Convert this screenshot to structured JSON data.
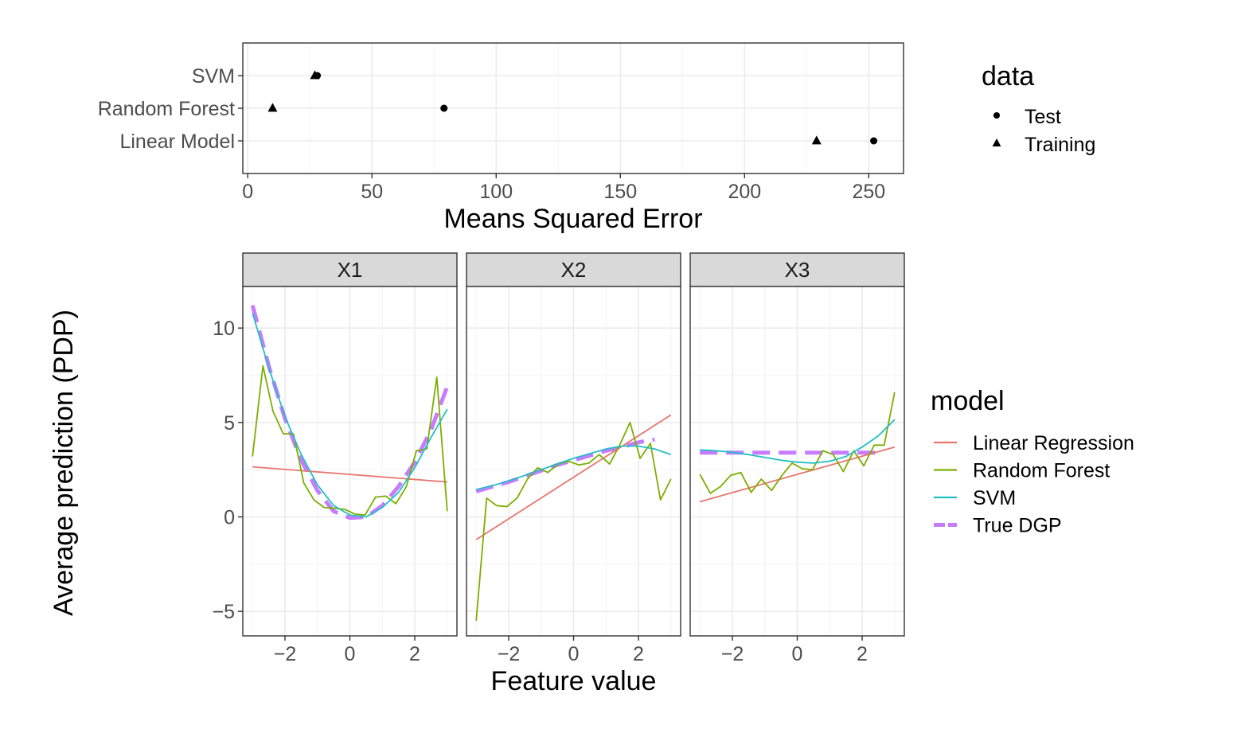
{
  "chart_data": [
    {
      "type": "scatter",
      "xlabel": "Means Squared Error",
      "ylabel": "",
      "categories": [
        "SVM",
        "Random Forest",
        "Linear Model"
      ],
      "xlim": [
        -2,
        264
      ],
      "xticks": [
        0,
        50,
        100,
        150,
        200,
        250
      ],
      "grid": true,
      "legend": {
        "title": "data",
        "position": "right",
        "entries": [
          "Test",
          "Training"
        ]
      },
      "series": [
        {
          "name": "Test",
          "marker": "circle",
          "points": [
            {
              "category": "SVM",
              "x": 28
            },
            {
              "category": "Random Forest",
              "x": 79
            },
            {
              "category": "Linear Model",
              "x": 252
            }
          ]
        },
        {
          "name": "Training",
          "marker": "triangle",
          "points": [
            {
              "category": "SVM",
              "x": 27
            },
            {
              "category": "Random Forest",
              "x": 10
            },
            {
              "category": "Linear Model",
              "x": 229
            }
          ]
        }
      ]
    },
    {
      "type": "line",
      "xlabel": "Feature value",
      "ylabel": "Average prediction (PDP)",
      "ylim": [
        -6.3,
        12.2
      ],
      "yticks": [
        -5,
        0,
        5,
        10
      ],
      "xlim": [
        -3.3,
        3.3
      ],
      "xticks": [
        -2,
        0,
        2
      ],
      "grid": true,
      "legend": {
        "title": "model",
        "position": "right",
        "entries": [
          "Linear Regression",
          "Random Forest",
          "SVM",
          "True DGP"
        ]
      },
      "colors": {
        "Linear Regression": "#E8766D",
        "Random Forest": "#7CAE00",
        "SVM": "#22BFC4",
        "True DGP": "#C77CFF"
      },
      "panels": [
        {
          "name": "X1",
          "series": [
            {
              "name": "Linear Regression",
              "x": [
                -3,
                3
              ],
              "y": [
                2.65,
                1.85
              ]
            },
            {
              "name": "Random Forest",
              "x": [
                -3,
                -2.68,
                -2.37,
                -2.05,
                -1.74,
                -1.42,
                -1.11,
                -0.79,
                -0.47,
                -0.16,
                0.16,
                0.47,
                0.79,
                1.11,
                1.42,
                1.74,
                2.05,
                2.37,
                2.68,
                3
              ],
              "y": [
                3.2,
                8.0,
                5.6,
                4.4,
                4.4,
                1.8,
                0.9,
                0.5,
                0.45,
                0.4,
                0.15,
                0.1,
                1.05,
                1.1,
                0.7,
                1.6,
                3.5,
                3.6,
                7.4,
                0.3
              ]
            },
            {
              "name": "SVM",
              "x": [
                -3,
                -2.5,
                -2,
                -1.5,
                -1,
                -0.5,
                0,
                0.5,
                1,
                1.5,
                2,
                2.5,
                3
              ],
              "y": [
                10.8,
                7.9,
                5.3,
                3.3,
                1.7,
                0.6,
                0.1,
                0.0,
                0.5,
                1.3,
                2.6,
                4.2,
                5.7
              ]
            },
            {
              "name": "True DGP",
              "x": [
                -3,
                -2.5,
                -2,
                -1.5,
                -1,
                -0.5,
                0,
                0.5,
                1,
                1.5,
                2,
                2.5,
                3
              ],
              "y": [
                11.2,
                8.0,
                5.2,
                3.0,
                1.4,
                0.3,
                -0.05,
                0.0,
                0.6,
                1.6,
                2.9,
                4.6,
                6.9
              ]
            }
          ]
        },
        {
          "name": "X2",
          "series": [
            {
              "name": "Linear Regression",
              "x": [
                -3,
                3
              ],
              "y": [
                -1.2,
                5.4
              ]
            },
            {
              "name": "Random Forest",
              "x": [
                -3,
                -2.68,
                -2.37,
                -2.05,
                -1.74,
                -1.42,
                -1.11,
                -0.79,
                -0.47,
                -0.16,
                0.16,
                0.47,
                0.79,
                1.11,
                1.42,
                1.74,
                2.05,
                2.37,
                2.68,
                3
              ],
              "y": [
                -5.5,
                1.0,
                0.6,
                0.55,
                1.0,
                2.0,
                2.6,
                2.35,
                2.8,
                2.95,
                2.75,
                2.85,
                3.3,
                2.8,
                3.8,
                5.0,
                3.1,
                3.9,
                0.9,
                2.0
              ]
            },
            {
              "name": "SVM",
              "x": [
                -3,
                -2.5,
                -2,
                -1.5,
                -1,
                -0.5,
                0,
                0.5,
                1,
                1.5,
                2,
                2.5,
                3
              ],
              "y": [
                1.45,
                1.65,
                1.9,
                2.2,
                2.5,
                2.8,
                3.1,
                3.35,
                3.6,
                3.75,
                3.75,
                3.6,
                3.3
              ]
            },
            {
              "name": "True DGP",
              "x": [
                -3,
                -2.5,
                -2,
                -1.5,
                -1,
                -0.5,
                0,
                0.5,
                1,
                1.5,
                2,
                2.5
              ],
              "y": [
                1.35,
                1.6,
                1.85,
                2.15,
                2.45,
                2.75,
                3.0,
                3.25,
                3.5,
                3.7,
                3.95,
                4.1
              ]
            }
          ]
        },
        {
          "name": "X3",
          "series": [
            {
              "name": "Linear Regression",
              "x": [
                -3,
                3
              ],
              "y": [
                0.8,
                3.7
              ]
            },
            {
              "name": "Random Forest",
              "x": [
                -3,
                -2.68,
                -2.37,
                -2.05,
                -1.74,
                -1.42,
                -1.11,
                -0.79,
                -0.47,
                -0.16,
                0.16,
                0.47,
                0.79,
                1.11,
                1.42,
                1.74,
                2.05,
                2.37,
                2.68,
                3
              ],
              "y": [
                2.25,
                1.25,
                1.6,
                2.2,
                2.35,
                1.3,
                2.0,
                1.4,
                2.2,
                2.85,
                2.55,
                2.5,
                3.5,
                3.3,
                2.4,
                3.5,
                2.7,
                3.8,
                3.8,
                6.6
              ]
            },
            {
              "name": "SVM",
              "x": [
                -3,
                -2.5,
                -2,
                -1.5,
                -1,
                -0.5,
                0,
                0.5,
                1,
                1.5,
                2,
                2.5,
                3
              ],
              "y": [
                3.55,
                3.5,
                3.42,
                3.3,
                3.15,
                3.0,
                2.9,
                2.85,
                2.95,
                3.2,
                3.7,
                4.3,
                5.15
              ]
            },
            {
              "name": "True DGP",
              "x": [
                -3,
                2.5
              ],
              "y": [
                3.4,
                3.4
              ]
            }
          ]
        }
      ]
    }
  ]
}
